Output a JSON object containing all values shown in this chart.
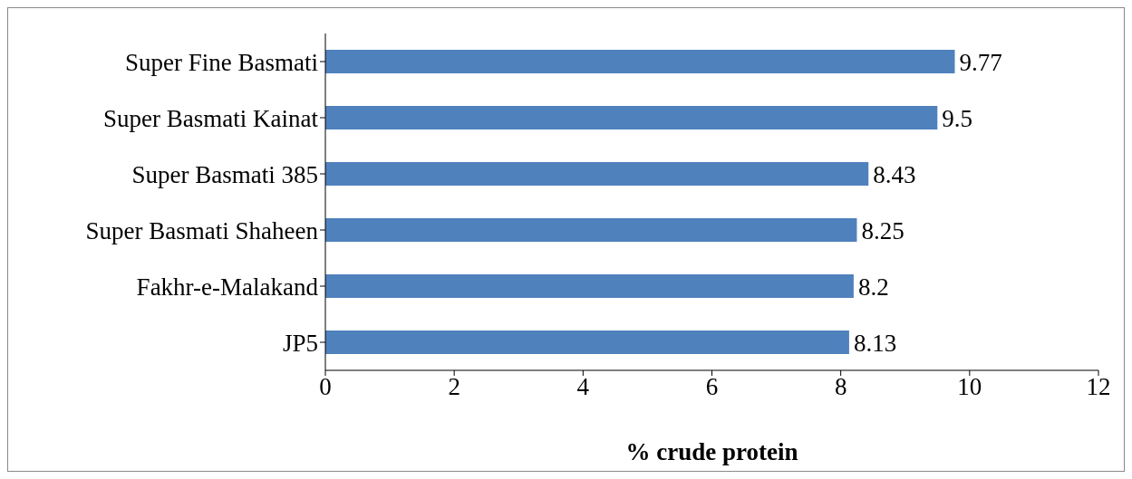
{
  "chart_data": {
    "type": "bar",
    "orientation": "horizontal",
    "xlabel": "% crude protein",
    "categories": [
      "Super Fine Basmati",
      "Super Basmati Kainat",
      "Super Basmati 385",
      "Super Basmati Shaheen",
      "Fakhr-e-Malakand",
      "JP5"
    ],
    "values": [
      9.77,
      9.5,
      8.43,
      8.25,
      8.2,
      8.13
    ],
    "color": "#4f81bd",
    "xlim": [
      0,
      12
    ],
    "xticks": [
      0,
      2,
      4,
      6,
      8,
      10,
      12
    ],
    "grid": false,
    "legend": false,
    "data_labels": true
  }
}
